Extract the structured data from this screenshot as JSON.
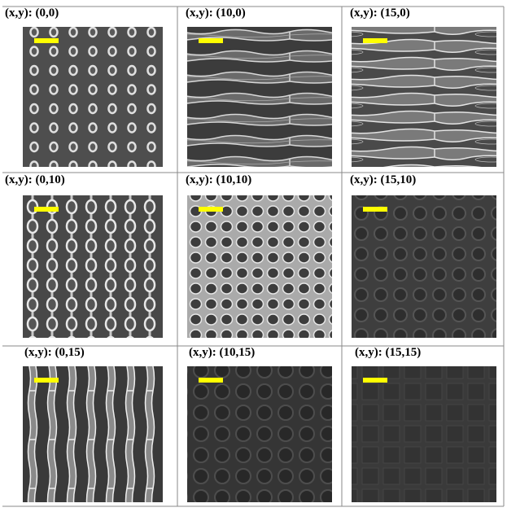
{
  "figure": {
    "rows": [
      [
        "(x,y): (0,0)",
        "(x,y): (10,0)",
        "(x,y): (15,0)"
      ],
      [
        "(x,y): (0,10)",
        "(x,y): (10,10)",
        "(x,y): (15,10)"
      ],
      [
        "(x,y): (0,15)",
        "(x,y): (10,15)",
        "(x,y): (15,15)"
      ]
    ]
  }
}
